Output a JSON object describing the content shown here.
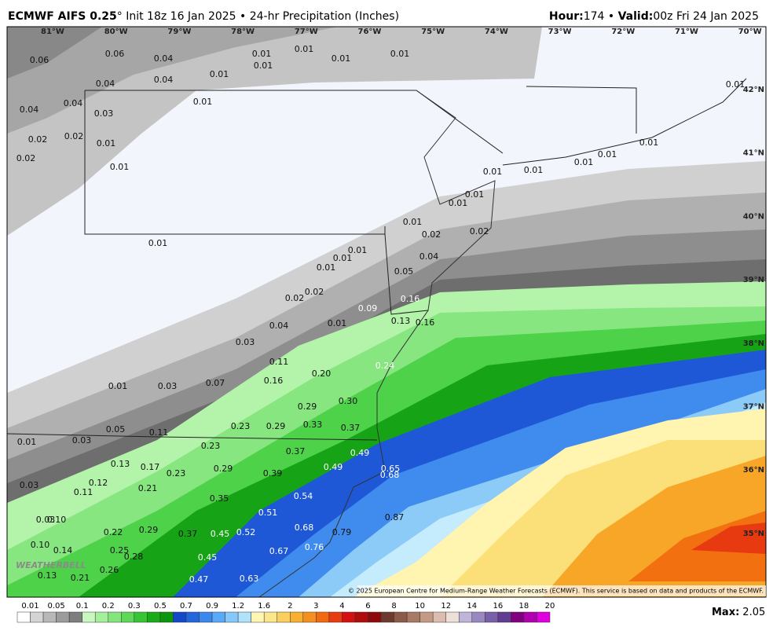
{
  "header": {
    "title_bold": "ECMWF AIFS 0.25",
    "title_rest": "° Init 18z 16 Jan 2025 • 24-hr Precipitation (Inches)",
    "hour_label": "Hour:",
    "hour": "174 • ",
    "valid_label": "Valid:",
    "valid": "00z Fri 24 Jan 2025"
  },
  "map": {
    "lon_labels": [
      "81°W",
      "80°W",
      "79°W",
      "78°W",
      "77°W",
      "76°W",
      "75°W",
      "74°W",
      "73°W",
      "72°W",
      "71°W",
      "70°W"
    ],
    "lat_labels": [
      "42°N",
      "41°N",
      "40°N",
      "39°N",
      "38°N",
      "37°N",
      "36°N",
      "35°N"
    ],
    "point_values": [
      "0.06",
      "0.06",
      "0.04",
      "0.01",
      "0.01",
      "0.01",
      "0.01",
      "0.01",
      "0.01",
      "0.04",
      "0.04",
      "0.04",
      "0.04",
      "0.03",
      "0.01",
      "0.02",
      "0.02",
      "0.01",
      "0.02",
      "0.01",
      "0.01",
      "0.01",
      "0.01",
      "0.01",
      "0.01",
      "0.01",
      "0.01",
      "0.01",
      "0.01",
      "0.02",
      "0.02",
      "0.04",
      "0.05",
      "0.01",
      "0.01",
      "0.01",
      "0.01",
      "0.02",
      "0.02",
      "0.09",
      "0.16",
      "0.01",
      "0.04",
      "0.13",
      "0.16",
      "0.03",
      "0.11",
      "0.24",
      "0.20",
      "0.16",
      "0.01",
      "0.03",
      "0.07",
      "0.29",
      "0.30",
      "0.05",
      "0.11",
      "0.23",
      "0.29",
      "0.33",
      "0.37",
      "0.01",
      "0.03",
      "0.23",
      "0.37",
      "0.49",
      "0.13",
      "0.17",
      "0.49",
      "0.65",
      "0.68",
      "0.23",
      "0.29",
      "0.39",
      "0.03",
      "0.12",
      "0.11",
      "0.21",
      "0.54",
      "0.35",
      "0.51",
      "0.03",
      "0.10",
      "0.87",
      "0.22",
      "0.29",
      "0.37",
      "0.45",
      "0.52",
      "0.68",
      "0.79",
      "0.10",
      "0.14",
      "0.25",
      "0.28",
      "0.76",
      "0.67",
      "0.45",
      "0.26",
      "0.13",
      "0.21",
      "0.47",
      "0.63"
    ],
    "logo": "WEATHERBELL",
    "copyright": "© 2025 European Centre for Medium-Range Weather Forecasts (ECMWF). This service is based on data and products of the ECMWF."
  },
  "legend": {
    "labels": [
      "0.01",
      "0.05",
      "0.1",
      "0.2",
      "0.3",
      "0.5",
      "0.7",
      "0.9",
      "1.2",
      "1.6",
      "2",
      "3",
      "4",
      "6",
      "8",
      "10",
      "12",
      "14",
      "16",
      "18",
      "20"
    ],
    "colors": [
      "#ffffff",
      "#d4d4d4",
      "#b8b8b8",
      "#9c9c9c",
      "#7e7e7e",
      "#c8f7c0",
      "#a4ef9a",
      "#84e57c",
      "#5ed858",
      "#36c634",
      "#18ad18",
      "#0c960c",
      "#1348c8",
      "#2266dc",
      "#3a88ee",
      "#5aa8f8",
      "#86c8fb",
      "#b0e2fd",
      "#fff6b4",
      "#fbe68c",
      "#fbcf5c",
      "#f8b030",
      "#f59020",
      "#f26a10",
      "#e83c10",
      "#d41010",
      "#b00c0c",
      "#8e0a0a",
      "#6e3a2e",
      "#8c5a48",
      "#a87a64",
      "#c49a84",
      "#dcbcae",
      "#ece0d8",
      "#c0b4d8",
      "#9a88c0",
      "#7a60a8",
      "#623c90",
      "#800080",
      "#b000b0",
      "#e000e0"
    ],
    "max_label": "Max:",
    "max": "2.05"
  }
}
